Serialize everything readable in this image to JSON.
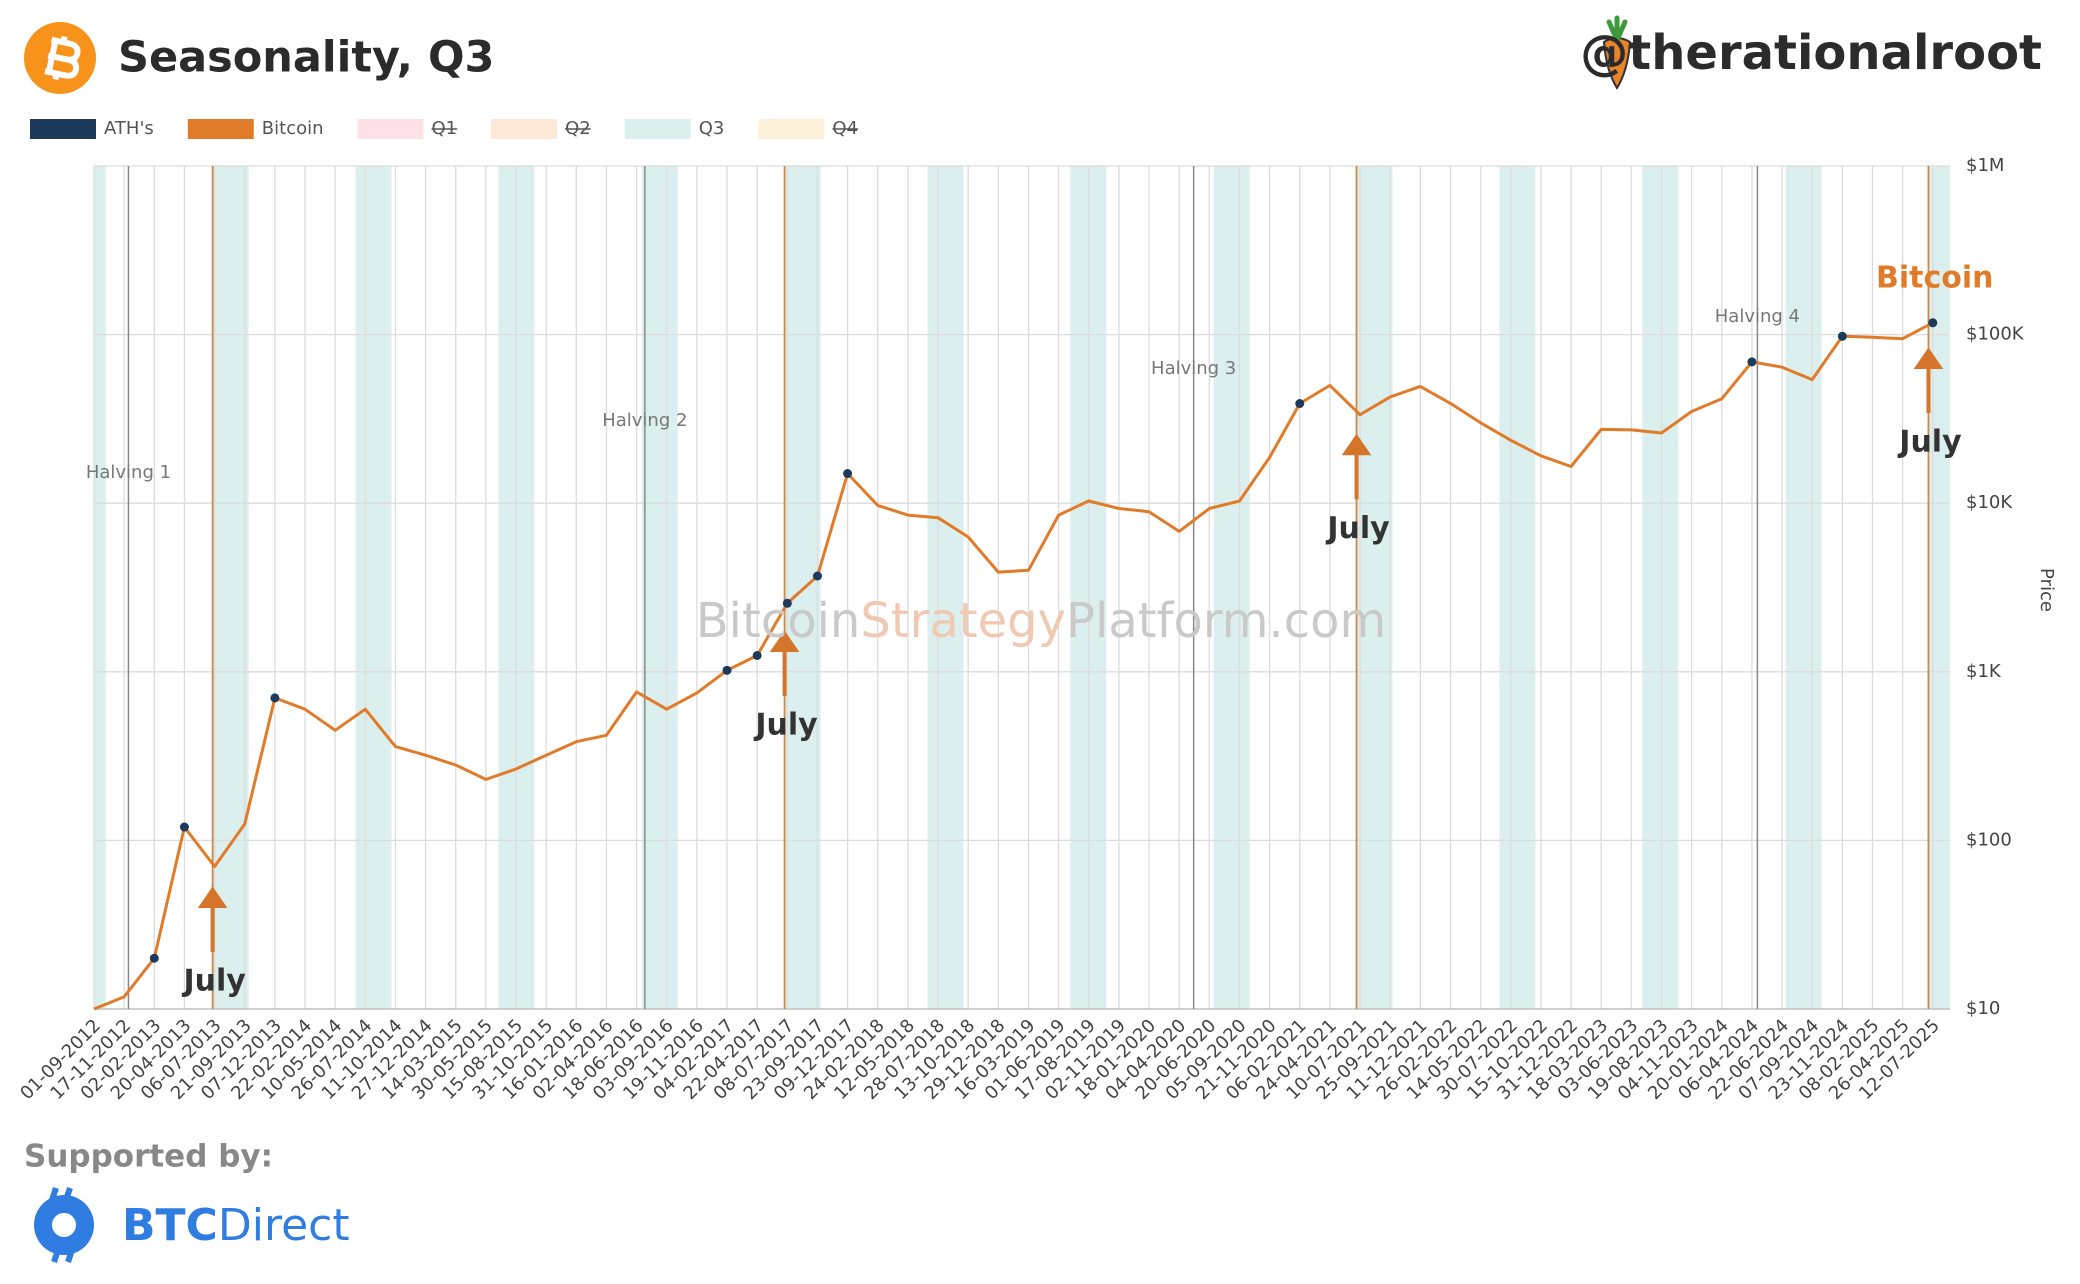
{
  "header": {
    "title": "Seasonality, Q3",
    "handle": "@therationalroot"
  },
  "footer": {
    "supported_by": "Supported by:",
    "sponsor_bold": "BTC",
    "sponsor_rest": "Direct"
  },
  "watermark": [
    "Bitcoin",
    "Strategy",
    "Platform.com"
  ],
  "chart_data": {
    "type": "line",
    "log_y": true,
    "grid": true,
    "y_axis_label": "Price",
    "xlim": [
      "01-09-2012",
      "25-08-2025"
    ],
    "xticks": [
      "01-09-2012",
      "17-11-2012",
      "02-02-2013",
      "20-04-2013",
      "06-07-2013",
      "21-09-2013",
      "07-12-2013",
      "22-02-2014",
      "10-05-2014",
      "26-07-2014",
      "11-10-2014",
      "27-12-2014",
      "14-03-2015",
      "30-05-2015",
      "15-08-2015",
      "31-10-2015",
      "16-01-2016",
      "02-04-2016",
      "18-06-2016",
      "03-09-2016",
      "19-11-2016",
      "04-02-2017",
      "22-04-2017",
      "08-07-2017",
      "23-09-2017",
      "09-12-2017",
      "24-02-2018",
      "12-05-2018",
      "28-07-2018",
      "13-10-2018",
      "29-12-2018",
      "16-03-2019",
      "01-06-2019",
      "17-08-2019",
      "02-11-2019",
      "18-01-2020",
      "04-04-2020",
      "20-06-2020",
      "05-09-2020",
      "21-11-2020",
      "06-02-2021",
      "24-04-2021",
      "10-07-2021",
      "25-09-2021",
      "11-12-2021",
      "26-02-2022",
      "14-05-2022",
      "30-07-2022",
      "15-10-2022",
      "31-12-2022",
      "18-03-2023",
      "03-06-2023",
      "19-08-2023",
      "04-11-2023",
      "20-01-2024",
      "06-04-2024",
      "22-06-2024",
      "07-09-2024",
      "23-11-2024",
      "08-02-2025",
      "26-04-2025",
      "12-07-2025"
    ],
    "ylim": [
      10,
      1000000
    ],
    "yticks": [
      {
        "value": 10,
        "label": "$10"
      },
      {
        "value": 100,
        "label": "$100"
      },
      {
        "value": 1000,
        "label": "$1K"
      },
      {
        "value": 10000,
        "label": "$10K"
      },
      {
        "value": 100000,
        "label": "$100K"
      },
      {
        "value": 1000000,
        "label": "$1M"
      }
    ],
    "x": [
      "01-09-2012",
      "17-11-2012",
      "02-02-2013",
      "20-04-2013",
      "06-07-2013",
      "21-09-2013",
      "07-12-2013",
      "22-02-2014",
      "10-05-2014",
      "26-07-2014",
      "11-10-2014",
      "27-12-2014",
      "14-03-2015",
      "30-05-2015",
      "15-08-2015",
      "31-10-2015",
      "16-01-2016",
      "02-04-2016",
      "18-06-2016",
      "03-09-2016",
      "19-11-2016",
      "04-02-2017",
      "22-04-2017",
      "08-07-2017",
      "23-09-2017",
      "09-12-2017",
      "24-02-2018",
      "12-05-2018",
      "28-07-2018",
      "13-10-2018",
      "29-12-2018",
      "16-03-2019",
      "01-06-2019",
      "17-08-2019",
      "02-11-2019",
      "18-01-2020",
      "04-04-2020",
      "20-06-2020",
      "05-09-2020",
      "21-11-2020",
      "06-02-2021",
      "24-04-2021",
      "10-07-2021",
      "25-09-2021",
      "11-12-2021",
      "26-02-2022",
      "14-05-2022",
      "30-07-2022",
      "15-10-2022",
      "31-12-2022",
      "18-03-2023",
      "03-06-2023",
      "19-08-2023",
      "04-11-2023",
      "20-01-2024",
      "06-04-2024",
      "22-06-2024",
      "07-09-2024",
      "23-11-2024",
      "08-02-2025",
      "26-04-2025",
      "12-07-2025"
    ],
    "series": [
      {
        "name": "ATH's",
        "color": "#1b3a5c",
        "values": [
          null,
          null,
          20,
          120,
          null,
          null,
          700,
          null,
          null,
          null,
          null,
          null,
          null,
          null,
          null,
          null,
          null,
          null,
          null,
          null,
          null,
          1020,
          1250,
          2550,
          3700,
          15000,
          null,
          null,
          null,
          null,
          null,
          null,
          null,
          null,
          null,
          null,
          null,
          null,
          null,
          null,
          39000,
          null,
          null,
          null,
          null,
          null,
          null,
          null,
          null,
          null,
          null,
          null,
          null,
          null,
          null,
          68900,
          null,
          null,
          97700,
          null,
          null,
          117500
        ]
      },
      {
        "name": "Bitcoin",
        "color": "#e07b2a",
        "values": [
          10,
          11.8,
          20,
          120,
          70,
          125,
          700,
          600,
          450,
          600,
          360,
          320,
          280,
          230,
          265,
          320,
          385,
          420,
          760,
          600,
          750,
          1020,
          1250,
          2550,
          3700,
          15000,
          9700,
          8500,
          8200,
          6300,
          3900,
          4000,
          8500,
          10300,
          9300,
          8900,
          6800,
          9300,
          10300,
          18700,
          39000,
          50000,
          33500,
          42700,
          49300,
          39100,
          30000,
          23600,
          19100,
          16500,
          27400,
          27200,
          26100,
          35000,
          41600,
          68900,
          64100,
          54100,
          97700,
          96500,
          94600,
          117500
        ]
      }
    ],
    "quarters": [
      {
        "name": "Q1",
        "color": "#fde1e7",
        "hidden": true
      },
      {
        "name": "Q2",
        "color": "#fde7d6",
        "hidden": true
      },
      {
        "name": "Q3",
        "color": "#dcefef",
        "hidden": false
      },
      {
        "name": "Q4",
        "color": "#fdf1da",
        "hidden": true
      }
    ],
    "halvings": [
      {
        "label": "Halving 1",
        "x": "28-11-2012"
      },
      {
        "label": "Halving 2",
        "x": "09-07-2016"
      },
      {
        "label": "Halving 3",
        "x": "11-05-2020"
      },
      {
        "label": "Halving 4",
        "x": "20-04-2024"
      }
    ],
    "july_markers": [
      {
        "label": "July",
        "x": "01-07-2013"
      },
      {
        "label": "July",
        "x": "01-07-2017"
      },
      {
        "label": "July",
        "x": "01-07-2021"
      },
      {
        "label": "July",
        "x": "01-07-2025"
      }
    ],
    "end_label": "Bitcoin"
  }
}
